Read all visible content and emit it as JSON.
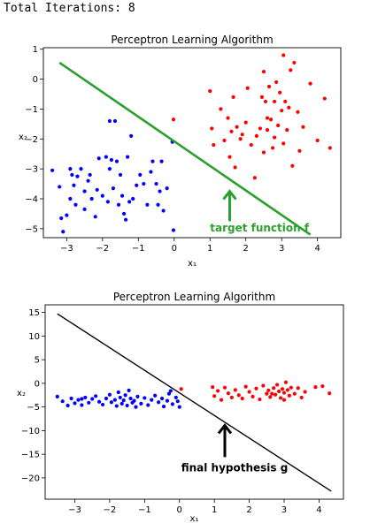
{
  "console": {
    "text": "Total Iterations: 8"
  },
  "chart_data": [
    {
      "type": "scatter",
      "title": "Perceptron Learning Algorithm",
      "xlabel": "x₁",
      "ylabel": "x₂",
      "xlim": [
        -3.65,
        4.65
      ],
      "ylim": [
        -5.3,
        1.05
      ],
      "xticks": [
        -3,
        -2,
        -1,
        0,
        1,
        2,
        3,
        4
      ],
      "yticks": [
        1,
        0,
        -1,
        -2,
        -3,
        -4,
        -5
      ],
      "grid": false,
      "series": [
        {
          "color": "#0000ff",
          "points": [
            [
              -3.4,
              -3.05
            ],
            [
              -3.2,
              -3.6
            ],
            [
              -3.15,
              -4.65
            ],
            [
              -3.1,
              -5.1
            ],
            [
              -3.0,
              -4.55
            ],
            [
              -2.9,
              -4.0
            ],
            [
              -2.85,
              -3.2
            ],
            [
              -2.8,
              -3.55
            ],
            [
              -2.75,
              -4.2
            ],
            [
              -2.7,
              -3.25
            ],
            [
              -2.6,
              -3.0
            ],
            [
              -2.5,
              -3.75
            ],
            [
              -2.5,
              -4.35
            ],
            [
              -2.4,
              -3.4
            ],
            [
              -2.35,
              -3.2
            ],
            [
              -2.3,
              -4.0
            ],
            [
              -2.2,
              -4.6
            ],
            [
              -2.15,
              -3.7
            ],
            [
              -2.0,
              -3.9
            ],
            [
              -1.9,
              -2.6
            ],
            [
              -1.85,
              -4.1
            ],
            [
              -1.8,
              -3.0
            ],
            [
              -1.75,
              -2.7
            ],
            [
              -1.7,
              -3.65
            ],
            [
              -1.65,
              -1.4
            ],
            [
              -1.6,
              -2.75
            ],
            [
              -1.55,
              -4.2
            ],
            [
              -1.5,
              -3.2
            ],
            [
              -1.45,
              -3.9
            ],
            [
              -1.4,
              -4.5
            ],
            [
              -1.35,
              -4.7
            ],
            [
              -1.3,
              -2.6
            ],
            [
              -1.25,
              -4.1
            ],
            [
              -1.2,
              -1.9
            ],
            [
              -1.15,
              -4.0
            ],
            [
              -1.05,
              -3.55
            ],
            [
              -0.95,
              -3.2
            ],
            [
              -0.85,
              -3.5
            ],
            [
              -0.75,
              -4.2
            ],
            [
              -0.65,
              -3.1
            ],
            [
              -0.6,
              -2.75
            ],
            [
              -0.5,
              -3.5
            ],
            [
              -0.45,
              -4.2
            ],
            [
              -0.4,
              -3.75
            ],
            [
              -0.35,
              -2.75
            ],
            [
              -0.3,
              -4.4
            ],
            [
              -0.2,
              -3.65
            ],
            [
              -0.05,
              -2.1
            ],
            [
              -0.02,
              -5.05
            ],
            [
              -1.8,
              -1.4
            ],
            [
              -2.1,
              -2.65
            ],
            [
              -2.9,
              -3.0
            ]
          ]
        },
        {
          "color": "#ff0000",
          "points": [
            [
              -0.02,
              -1.35
            ],
            [
              1.0,
              -0.4
            ],
            [
              1.05,
              -1.65
            ],
            [
              1.1,
              -2.2
            ],
            [
              1.3,
              -1.0
            ],
            [
              1.4,
              -2.05
            ],
            [
              1.5,
              -1.3
            ],
            [
              1.55,
              -2.6
            ],
            [
              1.6,
              -1.75
            ],
            [
              1.65,
              -0.6
            ],
            [
              1.7,
              -2.95
            ],
            [
              1.75,
              -1.6
            ],
            [
              1.85,
              -2.0
            ],
            [
              1.9,
              -1.85
            ],
            [
              2.0,
              -1.45
            ],
            [
              2.05,
              -0.3
            ],
            [
              2.15,
              -2.2
            ],
            [
              2.25,
              -3.3
            ],
            [
              2.3,
              -1.9
            ],
            [
              2.4,
              -1.65
            ],
            [
              2.45,
              -0.6
            ],
            [
              2.5,
              -2.45
            ],
            [
              2.55,
              -0.75
            ],
            [
              2.6,
              -1.3
            ],
            [
              2.65,
              -0.25
            ],
            [
              2.7,
              -1.35
            ],
            [
              2.75,
              -2.3
            ],
            [
              2.8,
              -1.95
            ],
            [
              2.85,
              -0.1
            ],
            [
              2.9,
              -1.55
            ],
            [
              2.95,
              -0.45
            ],
            [
              3.0,
              -1.05
            ],
            [
              3.05,
              -2.15
            ],
            [
              3.1,
              -0.75
            ],
            [
              3.15,
              -1.7
            ],
            [
              3.2,
              -0.95
            ],
            [
              3.3,
              -2.9
            ],
            [
              3.35,
              0.55
            ],
            [
              3.45,
              -1.1
            ],
            [
              3.5,
              -2.4
            ],
            [
              3.6,
              -1.6
            ],
            [
              3.8,
              -0.15
            ],
            [
              3.05,
              0.8
            ],
            [
              2.6,
              -1.7
            ],
            [
              4.0,
              -2.05
            ],
            [
              4.2,
              -0.65
            ],
            [
              4.35,
              -2.3
            ],
            [
              3.25,
              0.3
            ],
            [
              2.5,
              0.25
            ],
            [
              2.8,
              -0.75
            ]
          ]
        }
      ],
      "line": {
        "color": "#2ca02c",
        "from": [
          -3.2,
          0.55
        ],
        "to": [
          3.8,
          -5.2
        ]
      },
      "annotation": {
        "text": "target function f",
        "color": "#2ca02c",
        "text_at": [
          1.0,
          -5.1
        ],
        "arrow_tail": [
          1.55,
          -4.75
        ],
        "arrow_head": [
          1.55,
          -3.75
        ]
      }
    },
    {
      "type": "scatter",
      "title": "Perceptron Learning Algorithm",
      "xlabel": "x₁",
      "ylabel": "x₂",
      "xlim": [
        -3.85,
        4.7
      ],
      "ylim": [
        -24.5,
        16.6
      ],
      "xticks": [
        -3,
        -2,
        -1,
        0,
        1,
        2,
        3,
        4
      ],
      "yticks": [
        15,
        10,
        5,
        0,
        -5,
        -10,
        -15,
        -20
      ],
      "grid": false,
      "series": [
        {
          "color": "#0000ff",
          "points": [
            [
              -3.5,
              -2.8
            ],
            [
              -3.35,
              -3.8
            ],
            [
              -3.2,
              -4.7
            ],
            [
              -3.1,
              -3.2
            ],
            [
              -3.0,
              -4.2
            ],
            [
              -2.9,
              -3.5
            ],
            [
              -2.8,
              -4.6
            ],
            [
              -2.7,
              -3.0
            ],
            [
              -2.6,
              -4.1
            ],
            [
              -2.5,
              -3.3
            ],
            [
              -2.4,
              -2.7
            ],
            [
              -2.3,
              -3.9
            ],
            [
              -2.2,
              -4.5
            ],
            [
              -2.1,
              -3.2
            ],
            [
              -2.0,
              -2.4
            ],
            [
              -1.95,
              -4.0
            ],
            [
              -1.85,
              -3.5
            ],
            [
              -1.8,
              -4.8
            ],
            [
              -1.75,
              -1.9
            ],
            [
              -1.7,
              -3.0
            ],
            [
              -1.65,
              -4.3
            ],
            [
              -1.6,
              -3.6
            ],
            [
              -1.55,
              -2.5
            ],
            [
              -1.5,
              -4.7
            ],
            [
              -1.45,
              -1.5
            ],
            [
              -1.4,
              -3.2
            ],
            [
              -1.35,
              -4.1
            ],
            [
              -1.3,
              -3.7
            ],
            [
              -1.25,
              -5.0
            ],
            [
              -1.2,
              -2.8
            ],
            [
              -1.1,
              -4.3
            ],
            [
              -1.0,
              -3.1
            ],
            [
              -0.9,
              -4.6
            ],
            [
              -0.8,
              -3.5
            ],
            [
              -0.7,
              -2.6
            ],
            [
              -0.6,
              -4.0
            ],
            [
              -0.5,
              -3.2
            ],
            [
              -0.45,
              -4.9
            ],
            [
              -0.35,
              -3.7
            ],
            [
              -0.3,
              -2.2
            ],
            [
              -0.2,
              -4.4
            ],
            [
              -0.1,
              -3.0
            ],
            [
              0.0,
              -5.0
            ],
            [
              -0.25,
              -1.6
            ],
            [
              -2.8,
              -3.3
            ],
            [
              -0.05,
              -3.8
            ]
          ]
        },
        {
          "color": "#ff0000",
          "points": [
            [
              0.05,
              -1.2
            ],
            [
              0.95,
              -0.8
            ],
            [
              1.0,
              -2.7
            ],
            [
              1.1,
              -1.6
            ],
            [
              1.2,
              -3.5
            ],
            [
              1.3,
              -0.9
            ],
            [
              1.4,
              -2.1
            ],
            [
              1.5,
              -3.0
            ],
            [
              1.6,
              -1.4
            ],
            [
              1.7,
              -2.5
            ],
            [
              1.8,
              -3.2
            ],
            [
              1.9,
              -0.7
            ],
            [
              2.0,
              -1.8
            ],
            [
              2.1,
              -2.8
            ],
            [
              2.2,
              -1.1
            ],
            [
              2.3,
              -3.4
            ],
            [
              2.4,
              -0.5
            ],
            [
              2.5,
              -2.2
            ],
            [
              2.55,
              -1.5
            ],
            [
              2.6,
              -2.9
            ],
            [
              2.7,
              -1.0
            ],
            [
              2.75,
              -2.4
            ],
            [
              2.8,
              -0.3
            ],
            [
              2.85,
              -1.7
            ],
            [
              2.9,
              -3.1
            ],
            [
              2.95,
              -1.2
            ],
            [
              3.0,
              -2.0
            ],
            [
              3.05,
              0.2
            ],
            [
              3.1,
              -1.4
            ],
            [
              3.15,
              -2.6
            ],
            [
              3.2,
              -0.9
            ],
            [
              3.3,
              -2.2
            ],
            [
              3.4,
              -1.0
            ],
            [
              3.5,
              -3.0
            ],
            [
              3.6,
              -1.8
            ],
            [
              3.9,
              -0.8
            ],
            [
              4.1,
              -0.6
            ],
            [
              4.3,
              -2.1
            ],
            [
              2.65,
              -2.2
            ],
            [
              3.0,
              -3.5
            ]
          ]
        }
      ],
      "line": {
        "color": "#000000",
        "from": [
          -3.5,
          14.7
        ],
        "to": [
          4.35,
          -22.8
        ]
      },
      "annotation": {
        "text": "final hypothesis g",
        "color": "#000000",
        "text_at": [
          0.05,
          -18.6
        ],
        "arrow_tail": [
          1.3,
          -15.6
        ],
        "arrow_head": [
          1.3,
          -8.9
        ]
      }
    }
  ]
}
